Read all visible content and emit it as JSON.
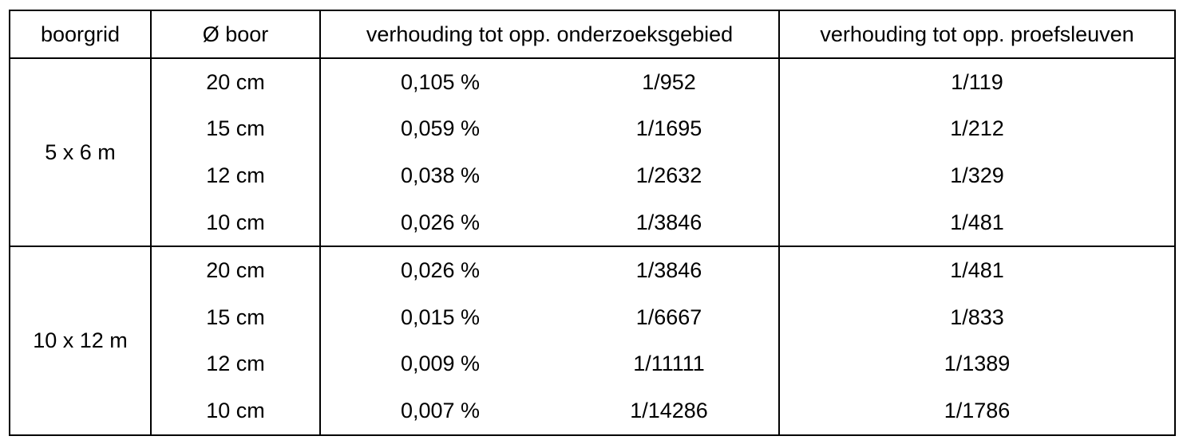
{
  "table": {
    "headers": {
      "boorgrid": "boorgrid",
      "diameter": "Ø boor",
      "onderzoeksgebied": "verhouding tot opp. onderzoeksgebied",
      "proefsleuven": "verhouding tot opp. proefsleuven"
    },
    "groups": [
      {
        "grid": "5 x 6 m",
        "rows": [
          {
            "diameter": "20 cm",
            "percent": "0,105 %",
            "fraction": "1/952",
            "sleuven": "1/119"
          },
          {
            "diameter": "15 cm",
            "percent": "0,059 %",
            "fraction": "1/1695",
            "sleuven": "1/212"
          },
          {
            "diameter": "12 cm",
            "percent": "0,038 %",
            "fraction": "1/2632",
            "sleuven": "1/329"
          },
          {
            "diameter": "10 cm",
            "percent": "0,026 %",
            "fraction": "1/3846",
            "sleuven": "1/481"
          }
        ]
      },
      {
        "grid": "10 x 12 m",
        "rows": [
          {
            "diameter": "20 cm",
            "percent": "0,026 %",
            "fraction": "1/3846",
            "sleuven": "1/481"
          },
          {
            "diameter": "15 cm",
            "percent": "0,015 %",
            "fraction": "1/6667",
            "sleuven": "1/833"
          },
          {
            "diameter": "12 cm",
            "percent": "0,009 %",
            "fraction": "1/11111",
            "sleuven": "1/1389"
          },
          {
            "diameter": "10 cm",
            "percent": "0,007 %",
            "fraction": "1/14286",
            "sleuven": "1/1786"
          }
        ]
      }
    ]
  }
}
